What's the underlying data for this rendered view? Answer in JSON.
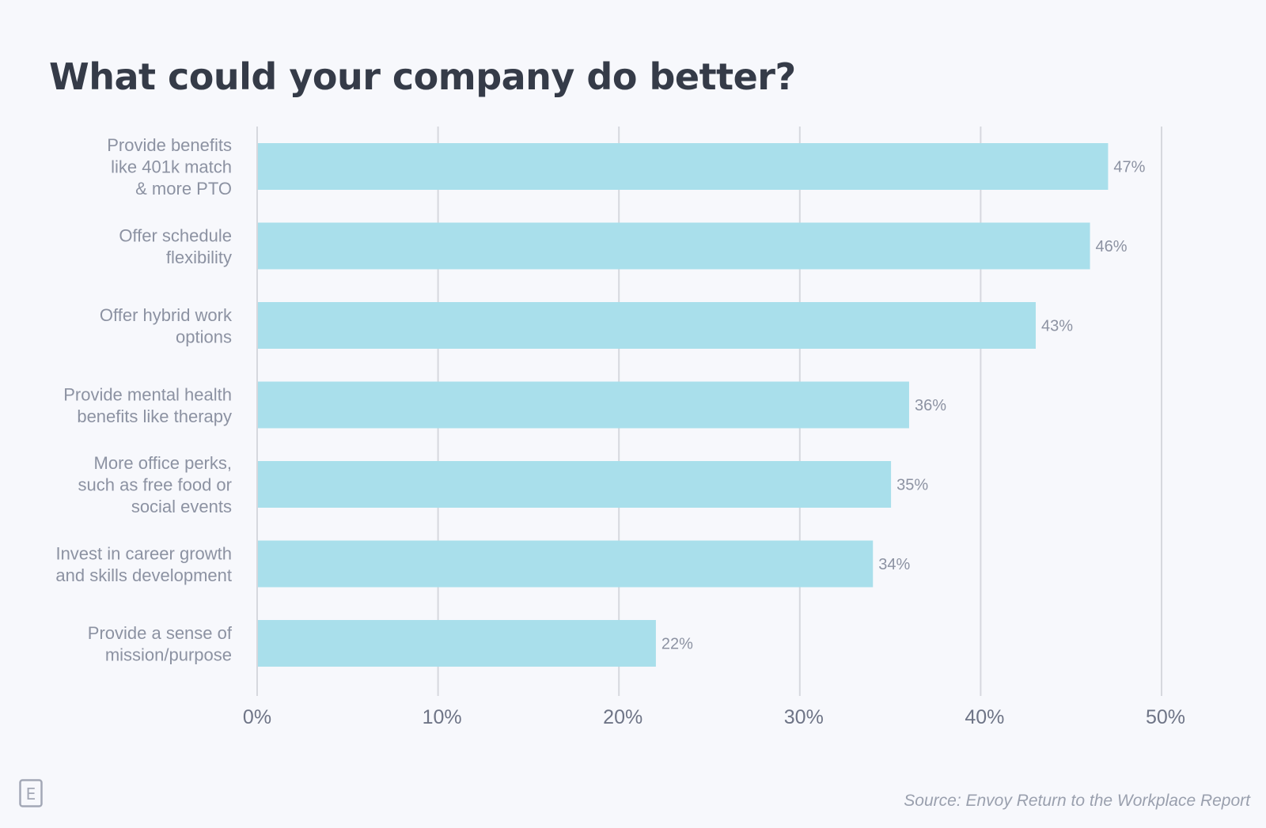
{
  "chart_data": {
    "type": "bar",
    "orientation": "horizontal",
    "title": "What could your company do better?",
    "categories": [
      [
        "Provide benefits",
        "like 401k match",
        "& more PTO"
      ],
      [
        "Offer schedule",
        "flexibility"
      ],
      [
        "Offer hybrid work",
        "options"
      ],
      [
        "Provide mental health",
        "benefits like therapy"
      ],
      [
        "More office perks,",
        "such as free food or",
        "social events"
      ],
      [
        "Invest in career growth",
        "and skills development"
      ],
      [
        "Provide a sense of",
        "mission/purpose"
      ]
    ],
    "values": [
      47,
      46,
      43,
      36,
      35,
      34,
      22
    ],
    "value_labels": [
      "47%",
      "46%",
      "43%",
      "36%",
      "35%",
      "34%",
      "22%"
    ],
    "xlim": [
      0,
      50
    ],
    "ticks": [
      0,
      10,
      20,
      30,
      40,
      50
    ],
    "tick_labels": [
      "0%",
      "10%",
      "20%",
      "30%",
      "40%",
      "50%"
    ],
    "xlabel": "",
    "ylabel": "",
    "grid": true
  },
  "source": "Source: Envoy Return to the Workplace Report",
  "colors": {
    "bar": "#a9dfeb",
    "grid": "#d6d8de",
    "title": "#353b48",
    "label": "#8c92a2",
    "tick": "#6e7486"
  },
  "logo": {
    "letter": "E"
  }
}
